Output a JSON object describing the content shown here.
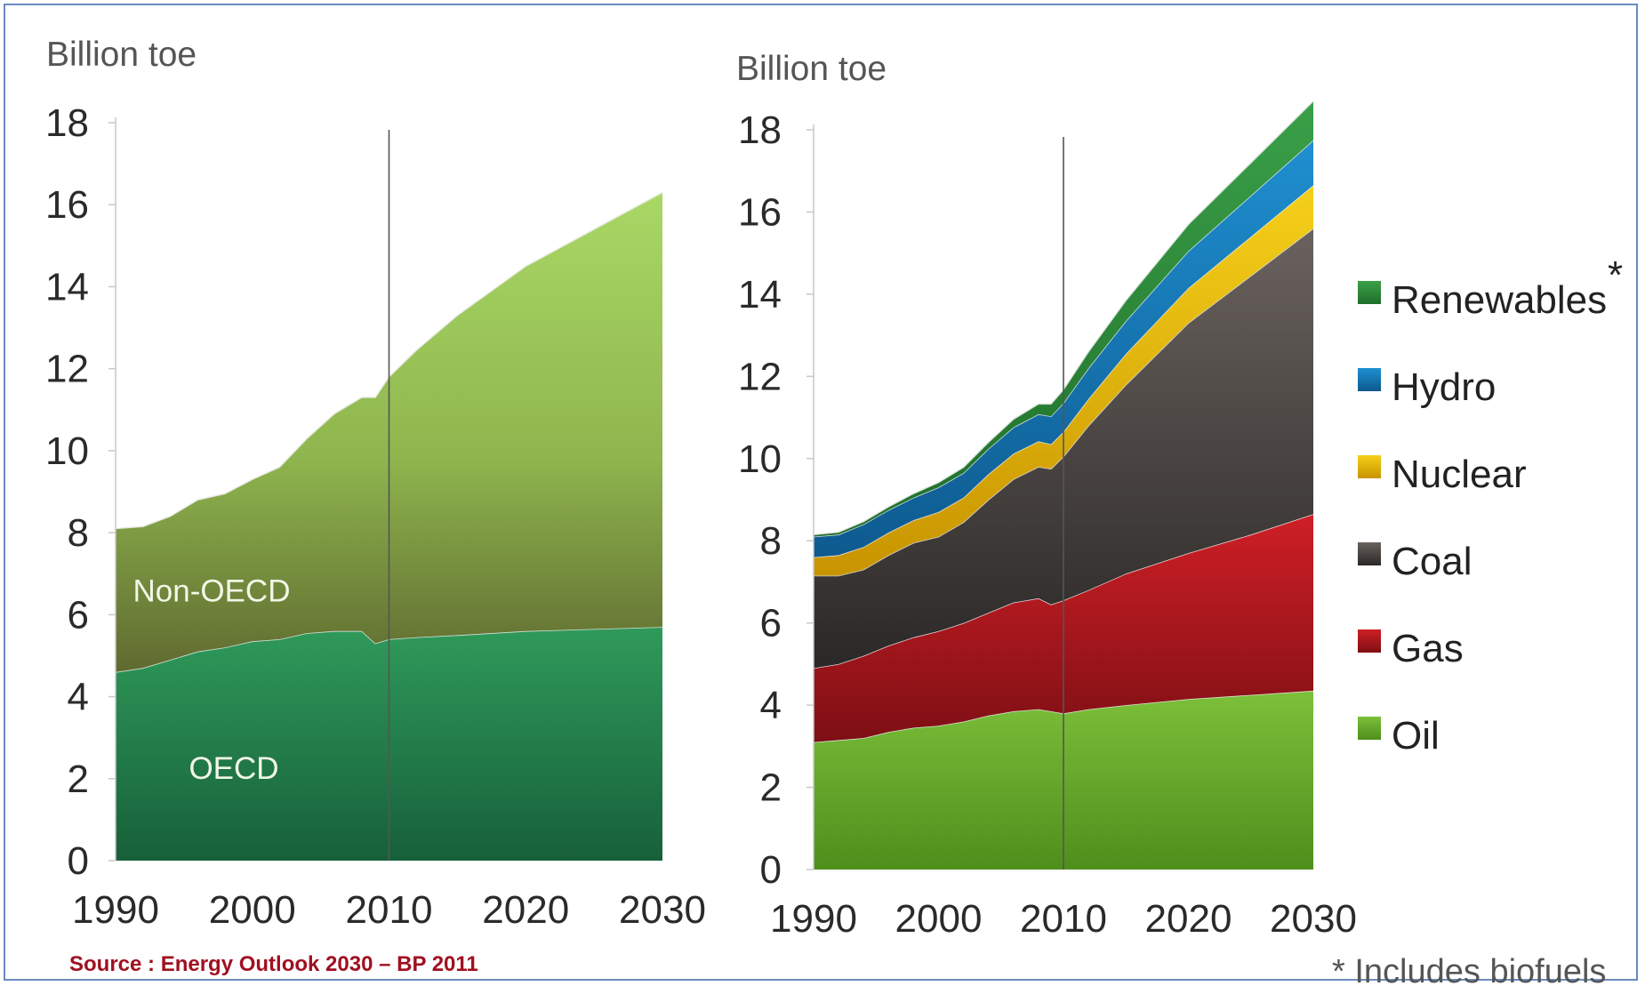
{
  "source": "Source : Energy Outlook 2030 – BP 2011",
  "footnote": "* Includes biofuels",
  "chart_data": [
    {
      "type": "area",
      "stacked": true,
      "ylabel": "Billion toe",
      "ylim": [
        0,
        18
      ],
      "yticks": [
        0,
        2,
        4,
        6,
        8,
        10,
        12,
        14,
        16,
        18
      ],
      "xlim": [
        1990,
        2030
      ],
      "xticks": [
        1990,
        2000,
        2010,
        2020,
        2030
      ],
      "x": [
        1990,
        1992,
        1994,
        1996,
        1998,
        2000,
        2002,
        2004,
        2006,
        2008,
        2009,
        2010,
        2012,
        2015,
        2020,
        2025,
        2030
      ],
      "series": [
        {
          "name": "OECD",
          "color": "#1f7a4a",
          "values": [
            4.6,
            4.7,
            4.9,
            5.1,
            5.2,
            5.35,
            5.4,
            5.55,
            5.6,
            5.6,
            5.3,
            5.4,
            5.45,
            5.5,
            5.6,
            5.65,
            5.7
          ]
        },
        {
          "name": "Non-OECD",
          "color": "#9fce60",
          "values": [
            3.5,
            3.45,
            3.5,
            3.7,
            3.75,
            3.95,
            4.2,
            4.75,
            5.3,
            5.7,
            6.0,
            6.4,
            7.0,
            7.8,
            8.9,
            9.75,
            10.6
          ]
        }
      ]
    },
    {
      "type": "area",
      "stacked": true,
      "ylabel": "Billion toe",
      "ylim": [
        0,
        18
      ],
      "yticks": [
        0,
        2,
        4,
        6,
        8,
        10,
        12,
        14,
        16,
        18
      ],
      "xlim": [
        1990,
        2030
      ],
      "xticks": [
        1990,
        2000,
        2010,
        2020,
        2030
      ],
      "x": [
        1990,
        1992,
        1994,
        1996,
        1998,
        2000,
        2002,
        2004,
        2006,
        2008,
        2009,
        2010,
        2012,
        2015,
        2020,
        2025,
        2030
      ],
      "series": [
        {
          "name": "Oil",
          "color": "#6cb32b",
          "values": [
            3.1,
            3.15,
            3.2,
            3.35,
            3.45,
            3.5,
            3.6,
            3.75,
            3.85,
            3.9,
            3.85,
            3.8,
            3.9,
            4.0,
            4.15,
            4.25,
            4.35
          ]
        },
        {
          "name": "Gas",
          "color": "#b8161c",
          "values": [
            1.8,
            1.85,
            2.0,
            2.1,
            2.2,
            2.3,
            2.4,
            2.5,
            2.65,
            2.7,
            2.6,
            2.75,
            2.9,
            3.2,
            3.55,
            3.9,
            4.3
          ]
        },
        {
          "name": "Coal",
          "color": "#4a4645",
          "values": [
            2.25,
            2.15,
            2.1,
            2.2,
            2.3,
            2.3,
            2.45,
            2.75,
            3.0,
            3.2,
            3.3,
            3.5,
            4.0,
            4.6,
            5.6,
            6.3,
            6.95
          ]
        },
        {
          "name": "Nuclear",
          "color": "#e6b800",
          "values": [
            0.45,
            0.5,
            0.55,
            0.55,
            0.55,
            0.6,
            0.6,
            0.62,
            0.62,
            0.62,
            0.6,
            0.6,
            0.65,
            0.75,
            0.85,
            0.95,
            1.05
          ]
        },
        {
          "name": "Hydro",
          "color": "#1478b8",
          "values": [
            0.5,
            0.5,
            0.55,
            0.55,
            0.55,
            0.6,
            0.6,
            0.62,
            0.64,
            0.66,
            0.68,
            0.7,
            0.75,
            0.8,
            0.9,
            1.0,
            1.1
          ]
        },
        {
          "name": "Renewables",
          "color": "#2e8b3a",
          "values": [
            0.05,
            0.06,
            0.07,
            0.08,
            0.1,
            0.12,
            0.14,
            0.16,
            0.2,
            0.25,
            0.3,
            0.33,
            0.4,
            0.5,
            0.65,
            0.8,
            0.95
          ]
        }
      ],
      "legend_order": [
        "Renewables",
        "Hydro",
        "Nuclear",
        "Coal",
        "Gas",
        "Oil"
      ],
      "legend_placement": "right",
      "renewables_marker": "*"
    }
  ]
}
